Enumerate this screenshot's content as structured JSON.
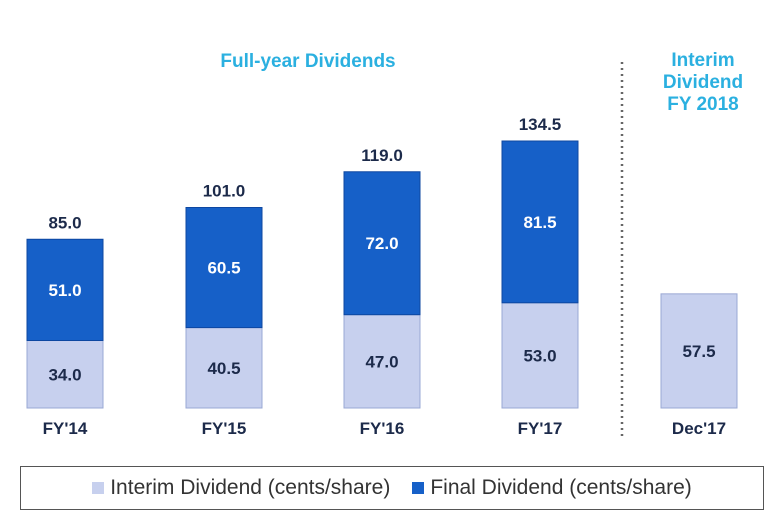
{
  "chart_data": {
    "type": "bar",
    "stacked": true,
    "title": "Full-year Dividends",
    "categories": [
      "FY'14",
      "FY'15",
      "FY'16",
      "FY'17",
      "Dec'17"
    ],
    "series": [
      {
        "name": "Interim Dividend (cents/share)",
        "values": [
          34.0,
          40.5,
          47.0,
          53.0,
          57.5
        ],
        "value_labels": [
          "34.0",
          "40.5",
          "47.0",
          "53.0",
          "57.5"
        ],
        "color": "#c7d0ee"
      },
      {
        "name": "Final Dividend (cents/share)",
        "values": [
          51.0,
          60.5,
          72.0,
          81.5,
          null
        ],
        "value_labels": [
          "51.0",
          "60.5",
          "72.0",
          "81.5",
          null
        ],
        "color": "#1660c8"
      }
    ],
    "totals": [
      85.0,
      101.0,
      119.0,
      134.5,
      null
    ],
    "total_labels": [
      "85.0",
      "101.0",
      "119.0",
      "134.5",
      null
    ],
    "ylim": [
      0,
      134.5
    ],
    "grid": false,
    "legend": "bottom",
    "annotation": [
      "Interim",
      "Dividend",
      "FY 2018"
    ]
  },
  "colors": {
    "title": "#2bb0e0",
    "label_dark": "#1c2a4a",
    "label_light": "#ffffff",
    "divider": "#666666"
  }
}
